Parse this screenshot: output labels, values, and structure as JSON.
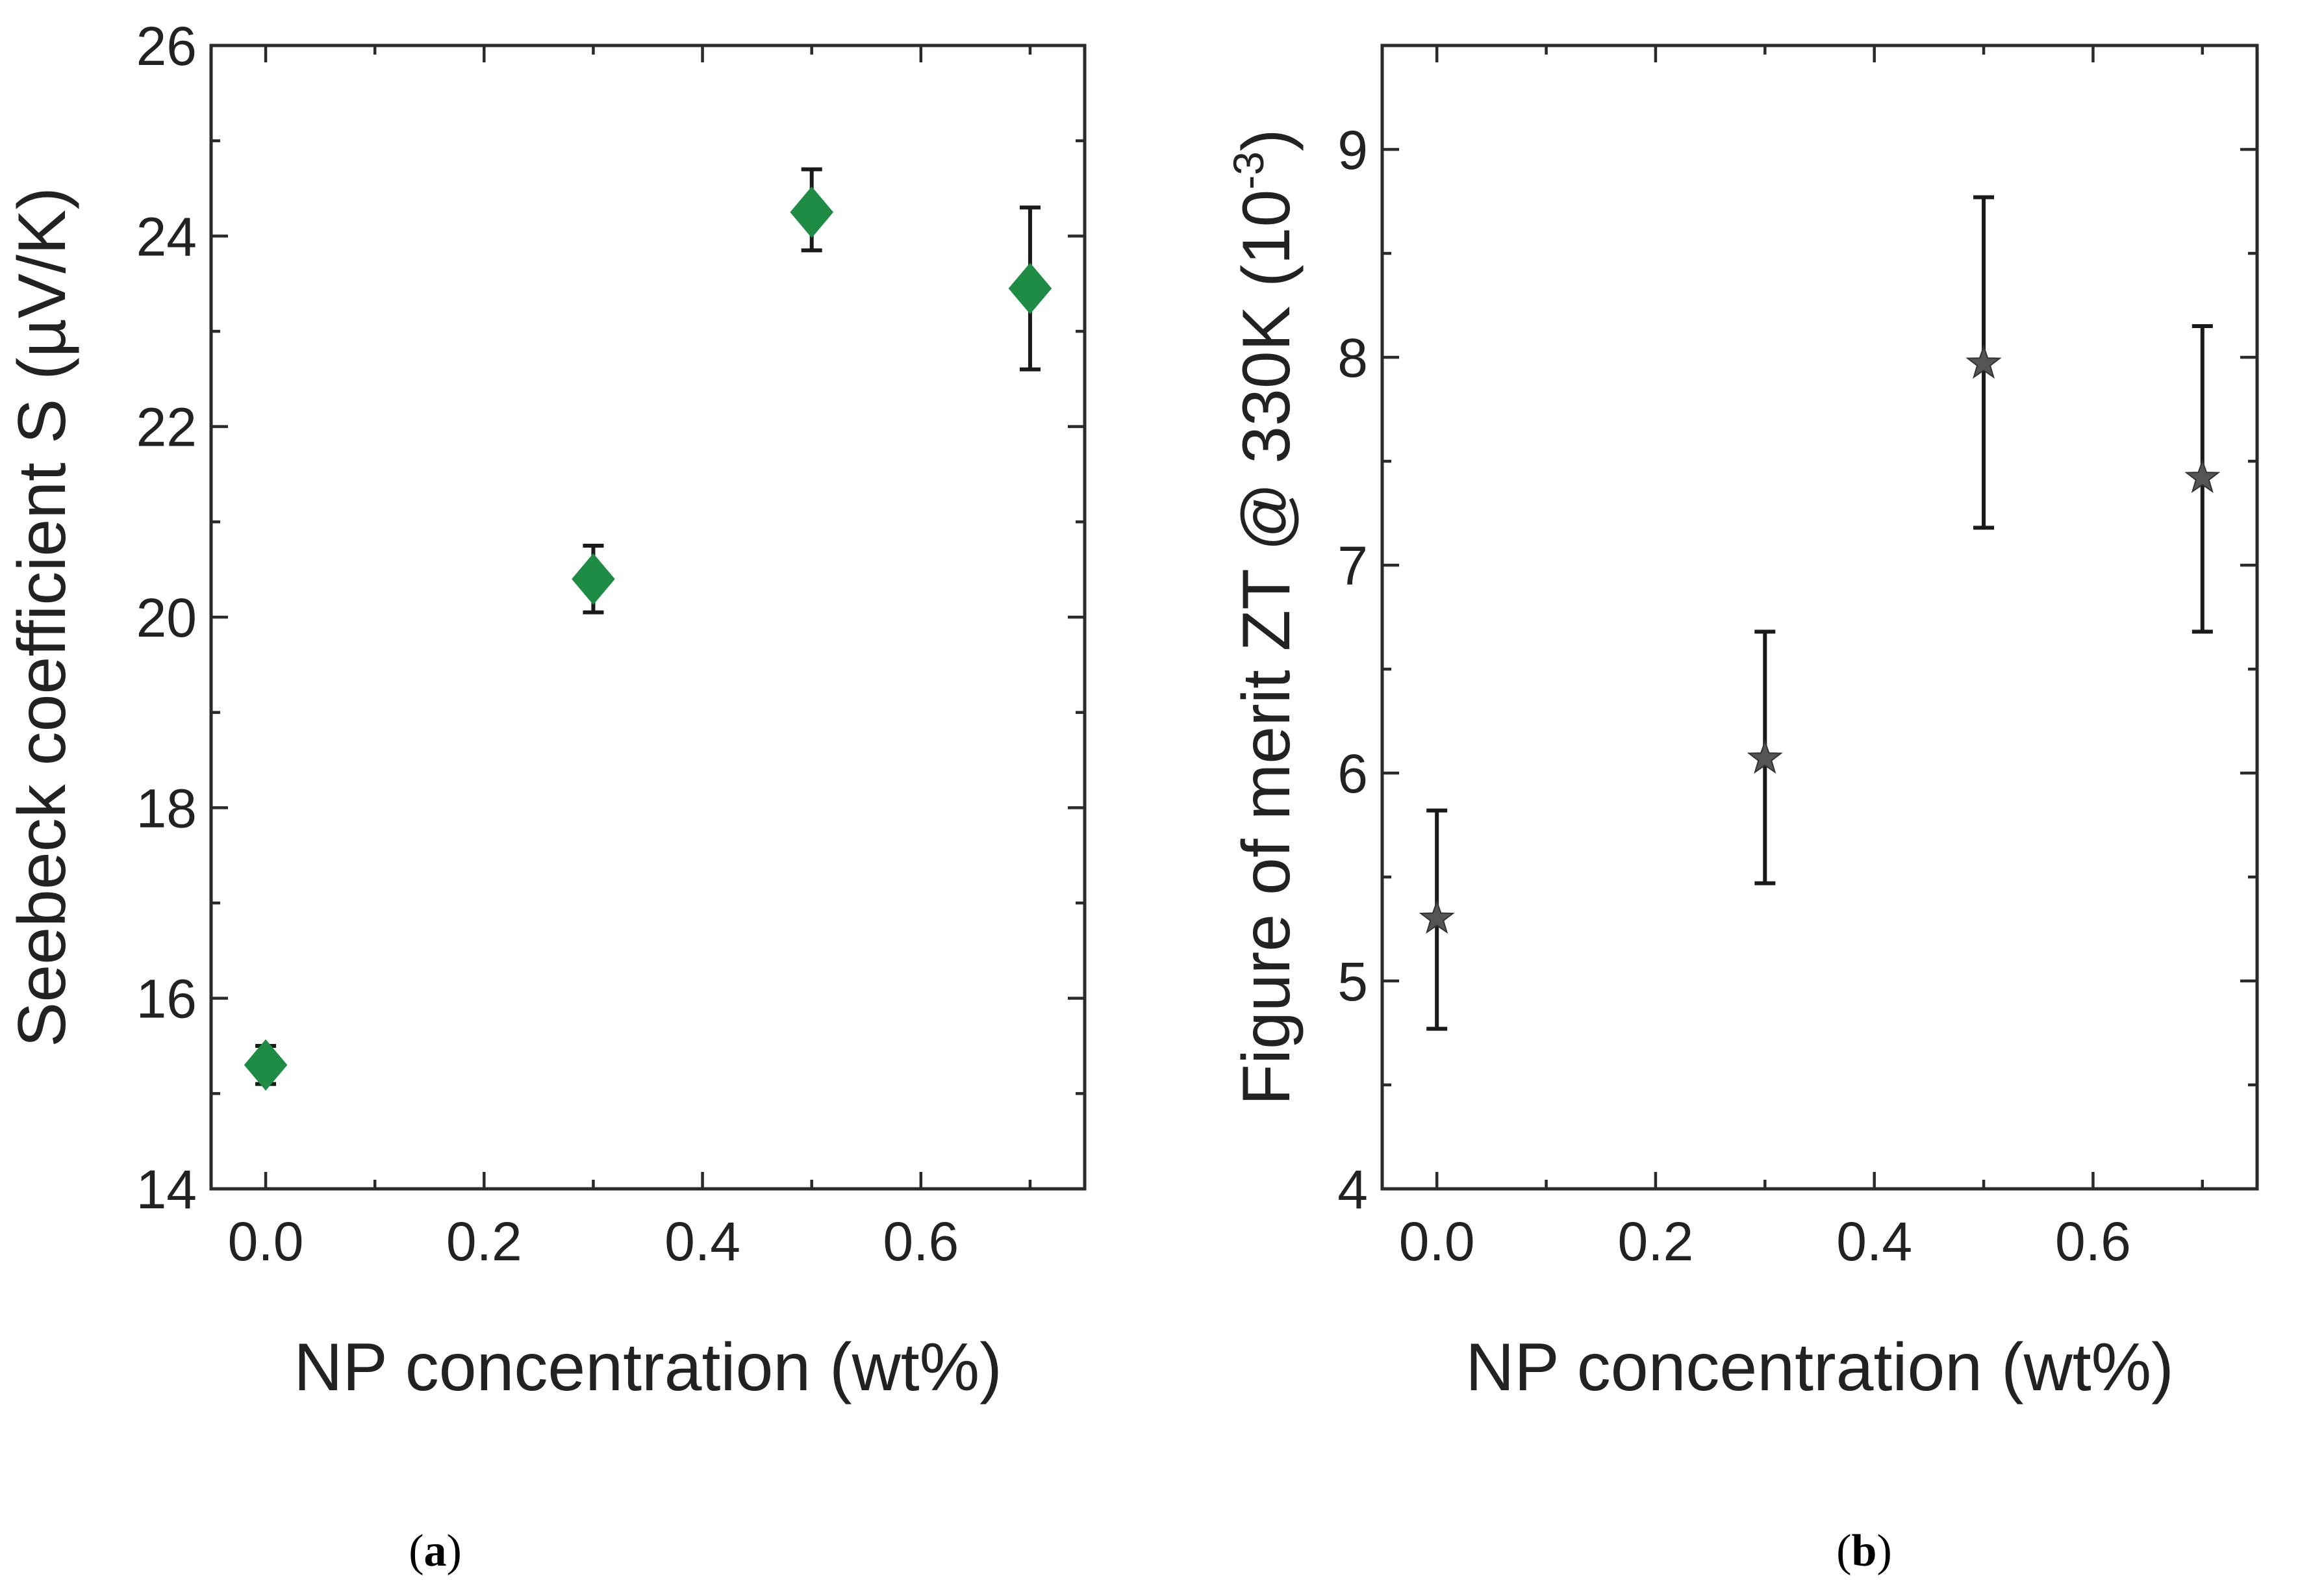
{
  "chart_data": [
    {
      "type": "scatter",
      "panel": "(a)",
      "panel_letter": "a",
      "xlabel": "NP concentration (wt%)",
      "ylabel": "Seebeck coefficient S (µV/K)",
      "xlim": [
        -0.05,
        0.75
      ],
      "ylim": [
        14,
        26
      ],
      "xticks": [
        0.0,
        0.2,
        0.4,
        0.6
      ],
      "xtick_labels": [
        "0.0",
        "0.2",
        "0.4",
        "0.6"
      ],
      "yticks": [
        14,
        16,
        18,
        20,
        22,
        24,
        26
      ],
      "ytick_labels": [
        "14",
        "16",
        "18",
        "20",
        "22",
        "24",
        "26"
      ],
      "marker": "diamond",
      "marker_color": "#1e8c45",
      "series": [
        {
          "name": "Seebeck coefficient",
          "x": [
            0.0,
            0.3,
            0.5,
            0.7
          ],
          "y": [
            15.3,
            20.4,
            24.25,
            23.45
          ],
          "err_low": [
            15.1,
            20.05,
            23.85,
            22.6
          ],
          "err_high": [
            15.5,
            20.75,
            24.7,
            24.3
          ]
        }
      ]
    },
    {
      "type": "scatter",
      "panel": "(b)",
      "panel_letter": "b",
      "xlabel": "NP concentration (wt%)",
      "ylabel": "Figure of merit ZT @ 330K (10",
      "ylabel_sup": "-3",
      "ylabel_end": ")",
      "xlim": [
        -0.05,
        0.75
      ],
      "ylim": [
        4,
        9.5
      ],
      "xticks": [
        0.0,
        0.2,
        0.4,
        0.6
      ],
      "xtick_labels": [
        "0.0",
        "0.2",
        "0.4",
        "0.6"
      ],
      "yticks": [
        4,
        5,
        6,
        7,
        8,
        9
      ],
      "ytick_labels": [
        "4",
        "5",
        "6",
        "7",
        "8",
        "9"
      ],
      "marker": "star",
      "marker_color": "#555555",
      "series": [
        {
          "name": "ZT",
          "x": [
            0.0,
            0.3,
            0.5,
            0.7
          ],
          "y": [
            5.3,
            6.07,
            7.97,
            7.42
          ],
          "err_low": [
            4.77,
            5.47,
            7.18,
            6.68
          ],
          "err_high": [
            5.82,
            6.68,
            8.77,
            8.15
          ]
        }
      ]
    }
  ]
}
